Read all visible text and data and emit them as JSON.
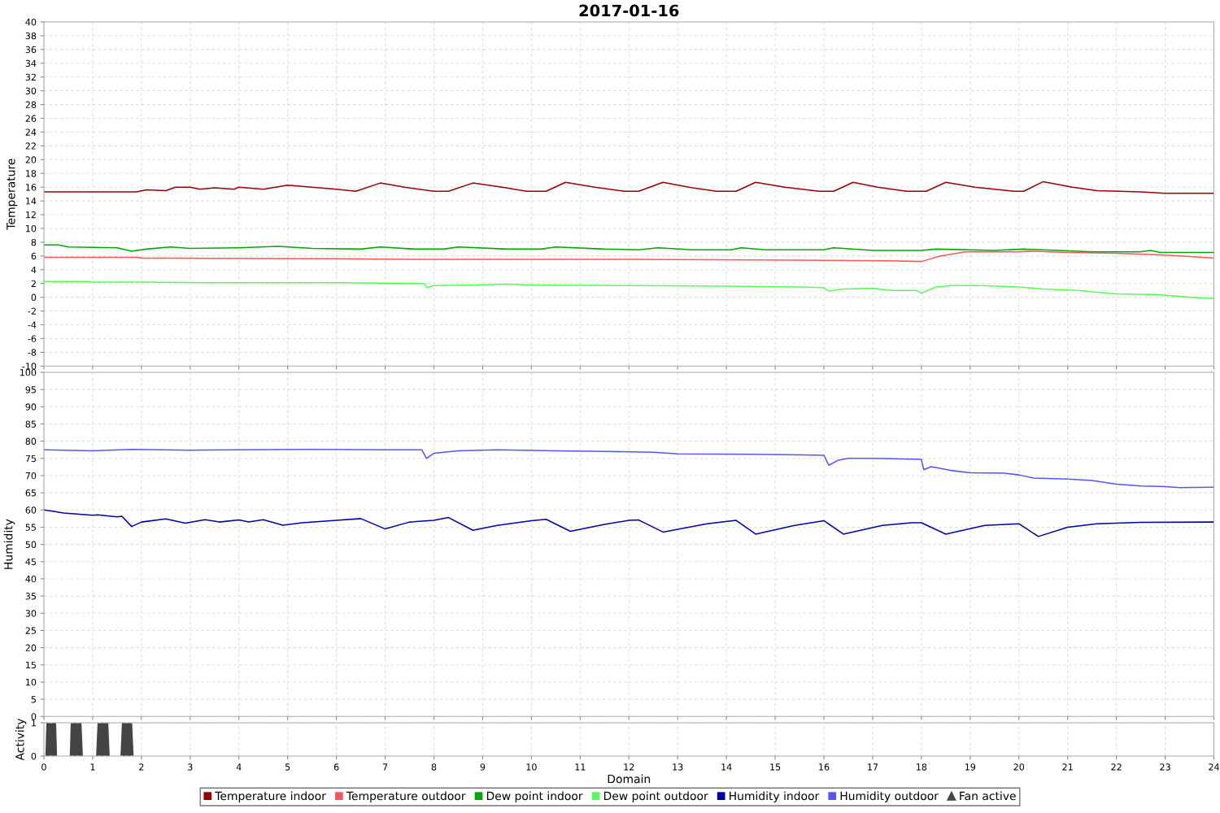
{
  "chart_data": [
    {
      "type": "line",
      "title": "2017-01-16",
      "ylabel": "Temperature",
      "xlim": [
        0,
        24
      ],
      "xticks": [
        0,
        1,
        2,
        3,
        4,
        5,
        6,
        7,
        8,
        9,
        10,
        11,
        12,
        13,
        14,
        15,
        16,
        17,
        18,
        19,
        20,
        21,
        22,
        23,
        24
      ],
      "ylim": [
        -10,
        40
      ],
      "yticks": [
        -10,
        -8,
        -6,
        -4,
        -2,
        0,
        2,
        4,
        6,
        8,
        10,
        12,
        14,
        16,
        18,
        20,
        22,
        24,
        26,
        28,
        30,
        32,
        34,
        36,
        38,
        40
      ],
      "grid": true,
      "tick_labels": "y",
      "line_style": "solid",
      "marker": "none",
      "legend": "bottom",
      "series": [
        {
          "name": "Temperature indoor",
          "color": "#990000",
          "x": [
            0,
            1.9,
            2.1,
            2.5,
            2.7,
            3.0,
            3.2,
            3.5,
            3.9,
            4.0,
            4.5,
            5.0,
            5.5,
            6.0,
            6.4,
            6.9,
            7.4,
            8.0,
            8.3,
            8.8,
            9.4,
            9.9,
            10.3,
            10.7,
            11.3,
            11.9,
            12.2,
            12.7,
            13.3,
            13.8,
            14.2,
            14.6,
            15.2,
            15.9,
            16.2,
            16.6,
            17.1,
            17.7,
            18.1,
            18.5,
            19.1,
            19.9,
            20.1,
            20.5,
            21.1,
            21.6,
            22.5,
            23.0,
            24
          ],
          "values": [
            15.3,
            15.3,
            15.6,
            15.5,
            16.0,
            16.0,
            15.7,
            15.9,
            15.7,
            16.0,
            15.7,
            16.3,
            16.0,
            15.7,
            15.4,
            16.6,
            16.0,
            15.4,
            15.4,
            16.6,
            16.0,
            15.4,
            15.4,
            16.7,
            16.0,
            15.4,
            15.4,
            16.7,
            15.9,
            15.4,
            15.4,
            16.7,
            16.0,
            15.4,
            15.4,
            16.7,
            16.0,
            15.4,
            15.4,
            16.7,
            16.0,
            15.4,
            15.4,
            16.8,
            16.0,
            15.5,
            15.3,
            15.1,
            15.1
          ]
        },
        {
          "name": "Temperature outdoor",
          "color": "#ff5555",
          "x": [
            0,
            1.9,
            2.0,
            6.0,
            7.5,
            12,
            15.5,
            17.3,
            18.0,
            18.4,
            18.9,
            20,
            20.2,
            21,
            22,
            22.8,
            23.3,
            24
          ],
          "values": [
            5.8,
            5.8,
            5.7,
            5.6,
            5.5,
            5.5,
            5.4,
            5.3,
            5.2,
            6.0,
            6.6,
            6.6,
            6.7,
            6.5,
            6.4,
            6.2,
            6.0,
            5.7
          ]
        },
        {
          "name": "Dew point indoor",
          "color": "#00aa00",
          "x": [
            0,
            0.3,
            0.5,
            1.5,
            1.8,
            2.1,
            2.6,
            3.0,
            4,
            4.8,
            5.5,
            6.5,
            6.9,
            7.6,
            8.2,
            8.5,
            9.5,
            10.2,
            10.5,
            11.5,
            12.2,
            12.6,
            13.3,
            14.1,
            14.3,
            14.8,
            16.0,
            16.2,
            17,
            18.0,
            18.3,
            19.5,
            20.1,
            20.8,
            21.5,
            22.5,
            22.7,
            22.9,
            24
          ],
          "values": [
            7.6,
            7.6,
            7.3,
            7.2,
            6.7,
            7.0,
            7.3,
            7.1,
            7.2,
            7.4,
            7.1,
            7.0,
            7.3,
            7.0,
            7.0,
            7.3,
            7.0,
            7.0,
            7.3,
            7.0,
            6.9,
            7.2,
            6.9,
            6.9,
            7.2,
            6.9,
            6.9,
            7.2,
            6.8,
            6.8,
            7.0,
            6.8,
            7.0,
            6.8,
            6.6,
            6.6,
            6.8,
            6.5,
            6.5
          ]
        },
        {
          "name": "Dew point outdoor",
          "color": "#55ff55",
          "x": [
            0,
            0.9,
            1.0,
            2,
            3.5,
            6,
            7.8,
            7.85,
            8.0,
            8.9,
            9.5,
            10.0,
            12.0,
            14.0,
            15.5,
            16.0,
            16.1,
            16.4,
            17.0,
            17.4,
            17.9,
            18.0,
            18.3,
            18.6,
            19.2,
            20,
            20.5,
            21.2,
            22,
            22.8,
            23.5,
            24
          ],
          "values": [
            2.3,
            2.3,
            2.2,
            2.2,
            2.1,
            2.1,
            2.0,
            1.4,
            1.7,
            1.8,
            1.9,
            1.8,
            1.7,
            1.6,
            1.5,
            1.4,
            0.9,
            1.2,
            1.3,
            1.0,
            1.0,
            0.6,
            1.5,
            1.7,
            1.7,
            1.5,
            1.2,
            1.0,
            0.5,
            0.4,
            0.0,
            -0.2
          ]
        }
      ]
    },
    {
      "type": "line",
      "ylabel": "Humidity",
      "xlim": [
        0,
        24
      ],
      "xticks": [
        0,
        1,
        2,
        3,
        4,
        5,
        6,
        7,
        8,
        9,
        10,
        11,
        12,
        13,
        14,
        15,
        16,
        17,
        18,
        19,
        20,
        21,
        22,
        23,
        24
      ],
      "ylim": [
        0,
        100
      ],
      "yticks": [
        0,
        5,
        10,
        15,
        20,
        25,
        30,
        35,
        40,
        45,
        50,
        55,
        60,
        65,
        70,
        75,
        80,
        85,
        90,
        95,
        100
      ],
      "grid": true,
      "tick_labels": "y",
      "line_style": "solid",
      "marker": "none",
      "legend": "bottom",
      "series": [
        {
          "name": "Humidity indoor",
          "color": "#0000aa",
          "x": [
            0,
            0.2,
            0.4,
            1.0,
            1.1,
            1.5,
            1.6,
            1.8,
            2.0,
            2.5,
            2.9,
            3.3,
            3.6,
            4.0,
            4.2,
            4.5,
            4.9,
            5.3,
            6.0,
            6.5,
            7.0,
            7.5,
            8.0,
            8.3,
            8.8,
            9.3,
            10.0,
            10.3,
            10.8,
            11.5,
            12.0,
            12.2,
            12.7,
            13.6,
            14.2,
            14.6,
            15.4,
            16.0,
            16.4,
            17.2,
            17.8,
            18.0,
            18.5,
            19.3,
            20.0,
            20.4,
            21.0,
            21.6,
            22.5,
            24
          ],
          "values": [
            60,
            59.6,
            59.1,
            58.5,
            58.6,
            58.0,
            58.2,
            55.2,
            56.5,
            57.4,
            56.2,
            57.2,
            56.5,
            57.1,
            56.5,
            57.2,
            55.6,
            56.3,
            57.0,
            57.5,
            54.5,
            56.5,
            57.0,
            57.8,
            54.1,
            55.5,
            56.9,
            57.3,
            53.8,
            55.8,
            57.0,
            57.1,
            53.6,
            56.0,
            57.0,
            53.0,
            55.5,
            56.9,
            53.0,
            55.5,
            56.3,
            56.3,
            53.0,
            55.5,
            56.0,
            52.3,
            55.0,
            56.0,
            56.4,
            56.5
          ]
        },
        {
          "name": "Humidity outdoor",
          "color": "#5555ff",
          "x": [
            0,
            1,
            1.8,
            3,
            5.5,
            7.0,
            7.75,
            7.85,
            8.0,
            8.5,
            9.3,
            10.5,
            11.5,
            12.5,
            13.0,
            14.5,
            15.5,
            16.0,
            16.1,
            16.3,
            16.5,
            17.0,
            18.0,
            18.05,
            18.2,
            18.6,
            19,
            19.7,
            20,
            20.3,
            21,
            21.5,
            22,
            22.5,
            23,
            23.3,
            24
          ],
          "values": [
            77.5,
            77.2,
            77.6,
            77.4,
            77.6,
            77.5,
            77.5,
            75.0,
            76.5,
            77.2,
            77.5,
            77.2,
            77.0,
            76.8,
            76.3,
            76.2,
            76.0,
            75.9,
            73.0,
            74.5,
            75.0,
            75.0,
            74.7,
            71.7,
            72.6,
            71.5,
            70.8,
            70.7,
            70.2,
            69.3,
            69.0,
            68.6,
            67.5,
            67.0,
            66.8,
            66.5,
            66.6
          ]
        }
      ]
    },
    {
      "type": "area",
      "ylabel": "Activity",
      "xlabel": "Domain",
      "xlim": [
        0,
        24
      ],
      "xticks": [
        0,
        1,
        2,
        3,
        4,
        5,
        6,
        7,
        8,
        9,
        10,
        11,
        12,
        13,
        14,
        15,
        16,
        17,
        18,
        19,
        20,
        21,
        22,
        23,
        24
      ],
      "ylim": [
        0,
        1
      ],
      "yticks": [
        0,
        1
      ],
      "grid": true,
      "legend": "bottom",
      "series": [
        {
          "name": "Fan active",
          "color": "#444444",
          "x": [
            0,
            0.03,
            0.05,
            0.25,
            0.27,
            0.53,
            0.55,
            0.77,
            0.8,
            1.07,
            1.1,
            1.32,
            1.35,
            1.57,
            1.6,
            1.81,
            1.84,
            24
          ],
          "values": [
            0,
            0,
            1,
            1,
            0,
            0,
            1,
            1,
            0,
            0,
            1,
            1,
            0,
            0,
            1,
            1,
            0,
            0
          ]
        }
      ]
    }
  ]
}
